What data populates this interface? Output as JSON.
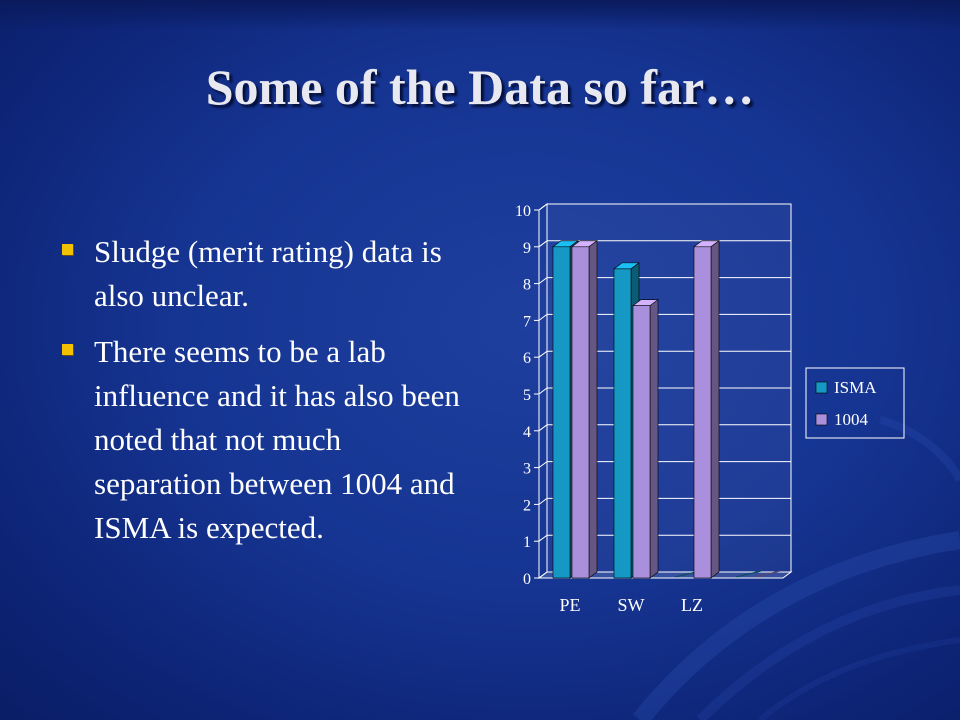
{
  "slide": {
    "title": "Some of the Data so far…",
    "bullets": [
      "Sludge (merit rating) data is also unclear.",
      "There seems to be a lab influence and it has also been noted that not much separation between 1004 and ISMA is expected."
    ]
  },
  "colors": {
    "bullet": "#f2c100",
    "isma": "#1599c4",
    "s1004": "#a98fdc",
    "chart_text": "#ffffff"
  },
  "chart_data": {
    "type": "bar",
    "categories": [
      "PE",
      "SW",
      "LZ",
      ""
    ],
    "series": [
      {
        "name": "ISMA",
        "values": [
          9,
          8.4,
          0,
          0
        ]
      },
      {
        "name": "1004",
        "values": [
          9,
          7.4,
          9,
          0
        ]
      }
    ],
    "yticks": [
      0,
      1,
      2,
      3,
      4,
      5,
      6,
      7,
      8,
      9,
      10
    ],
    "ylim": [
      0,
      10
    ],
    "grid": true,
    "legend_position": "right",
    "style": "3d-clustered-column"
  }
}
